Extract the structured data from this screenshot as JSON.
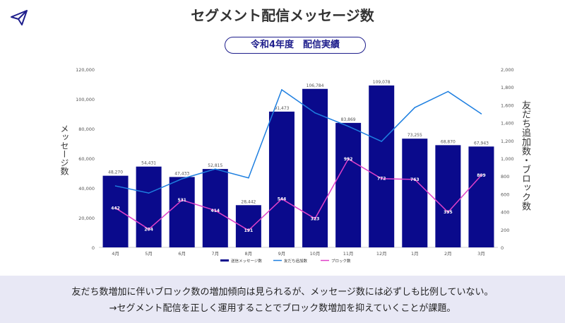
{
  "page": {
    "title": "セグメント配信メッセージ数",
    "subtitle": "令和4年度　配信実績",
    "footer_line1": "友だち数増加に伴いブロック数の増加傾向は見られるが、メッセージ数には必ずしも比例していない。",
    "footer_line2": "→セグメント配信を正しく運用することでブロック数増加を抑えていくことが課題。",
    "logo_icon": "paper-plane-icon"
  },
  "colors": {
    "bar": "#0a0a8c",
    "friends_line": "#1e7fe0",
    "block_line": "#e040c8",
    "axis_text": "#555555"
  },
  "chart_data": {
    "type": "bar",
    "categories": [
      "4月",
      "5月",
      "6月",
      "7月",
      "8月",
      "9月",
      "10月",
      "11月",
      "12月",
      "1月",
      "2月",
      "3月"
    ],
    "ylabel": "メッセージ数",
    "y2label": "友だち追加数・ブロック数",
    "ylim": [
      0,
      120000
    ],
    "y2lim": [
      0,
      2000
    ],
    "yticks": [
      "0",
      "20,000",
      "40,000",
      "60,000",
      "80,000",
      "100,000",
      "120,000"
    ],
    "y2ticks": [
      "0",
      "200",
      "400",
      "600",
      "800",
      "1,000",
      "1,200",
      "1,400",
      "1,600",
      "1,800",
      "2,000"
    ],
    "legend_position": "bottom",
    "series": [
      {
        "name": "送信メッセージ数",
        "type": "bar",
        "axis": "left",
        "values": [
          48270,
          54431,
          47433,
          52815,
          28442,
          91473,
          106784,
          83869,
          109078,
          73255,
          68870,
          67943
        ],
        "labels": [
          "48,270",
          "54,431",
          "47,433",
          "52,815",
          "28,442",
          "91,473",
          "106,784",
          "83,869",
          "109,078",
          "73,255",
          "68,870",
          "67,943"
        ]
      },
      {
        "name": "友だち追加数",
        "type": "line",
        "axis": "right",
        "values": [
          690,
          610,
          770,
          880,
          780,
          1770,
          1510,
          1360,
          1190,
          1570,
          1750,
          1500
        ]
      },
      {
        "name": "ブロック数",
        "type": "line",
        "axis": "right",
        "values": [
          442,
          204,
          531,
          414,
          191,
          544,
          323,
          992,
          772,
          763,
          395,
          809
        ],
        "labels": [
          "442",
          "204",
          "531",
          "414",
          "191",
          "544",
          "323",
          "992",
          "772",
          "763",
          "395",
          "809"
        ]
      }
    ]
  }
}
